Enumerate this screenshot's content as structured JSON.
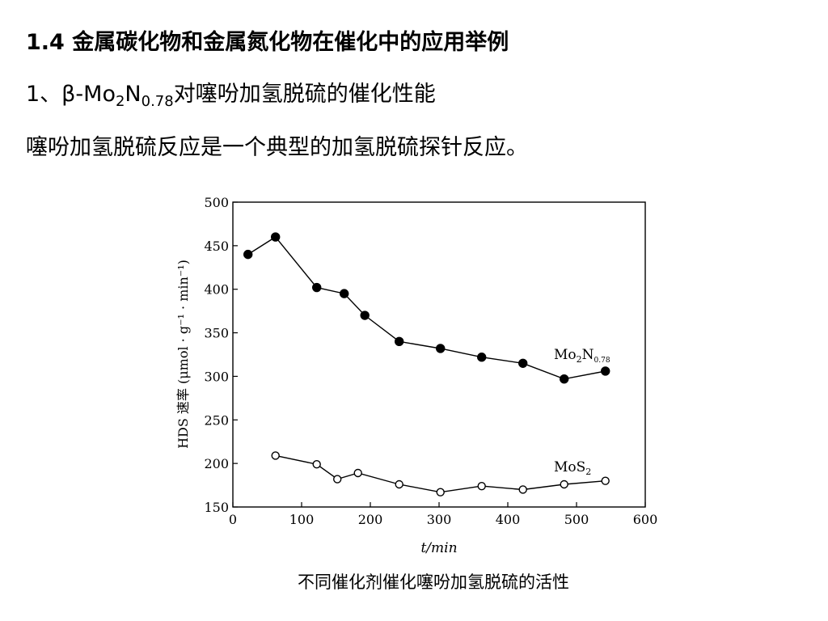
{
  "slide": {
    "heading_num": "1.4",
    "heading_text": "金属碳化物和金属氮化物在催化中的应用举例",
    "subheading": {
      "prefix": "1、β-Mo",
      "sub1": "2",
      "mid": "N",
      "sub2": "0.78",
      "suffix": "对噻吩加氢脱硫的催化性能"
    },
    "intro": "噻吩加氢脱硫反应是一个典型的加氢脱硫探针反应。",
    "caption": "不同催化剂催化噻吩加氢脱硫的活性"
  },
  "chart_data": {
    "type": "line",
    "xlabel": "t/min",
    "ylabel": "HDS 速率 (μmol · g⁻¹ · min⁻¹)",
    "xlim": [
      0,
      600
    ],
    "ylim": [
      150,
      500
    ],
    "xticks": [
      0,
      100,
      200,
      300,
      400,
      500,
      600
    ],
    "yticks": [
      150,
      200,
      250,
      300,
      350,
      400,
      450,
      500
    ],
    "grid": false,
    "series": [
      {
        "name": "Mo2N0.78",
        "label_base": "Mo",
        "label_sub1": "2",
        "label_mid": "N",
        "label_sub2": "0.78",
        "marker": "filled-circle",
        "x": [
          22,
          62,
          122,
          162,
          192,
          242,
          302,
          362,
          422,
          482,
          542
        ],
        "y": [
          440,
          460,
          402,
          395,
          370,
          340,
          332,
          322,
          315,
          297,
          306
        ]
      },
      {
        "name": "MoS2",
        "label_base": "MoS",
        "label_sub1": "2",
        "marker": "open-circle",
        "x": [
          62,
          122,
          152,
          182,
          242,
          302,
          362,
          422,
          482,
          542
        ],
        "y": [
          209,
          199,
          182,
          189,
          176,
          167,
          174,
          170,
          176,
          180
        ]
      }
    ]
  }
}
